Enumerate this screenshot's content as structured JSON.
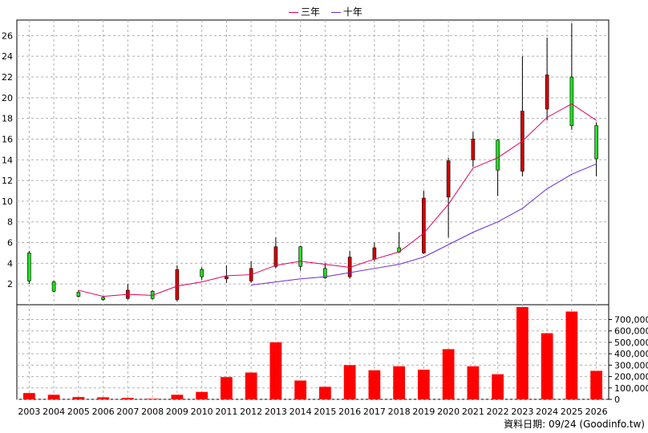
{
  "legend": {
    "ma3_label": "三年",
    "ma10_label": "十年",
    "ma3_color": "#e0005a",
    "ma10_color": "#6b2ad6"
  },
  "footer": {
    "text": "資料日期: 09/24  (Goodinfo.tw)"
  },
  "colors": {
    "up": "#d40000",
    "down": "#1ee01e",
    "volume": "#ff0000",
    "grid": "#b0b0b0"
  },
  "chart_data": [
    {
      "type": "candlestick",
      "title": "",
      "x": [
        "2003",
        "2004",
        "2005",
        "2006",
        "2007",
        "2008",
        "2009",
        "2010",
        "2011",
        "2012",
        "2013",
        "2014",
        "2015",
        "2016",
        "2017",
        "2018",
        "2019",
        "2020",
        "2021",
        "2022",
        "2023",
        "2024",
        "2025",
        "2026"
      ],
      "ylim": [
        0,
        27.5
      ],
      "yticks": [
        2,
        4,
        6,
        8,
        10,
        12,
        14,
        16,
        18,
        20,
        22,
        24,
        26
      ],
      "ohlc": [
        {
          "x": "2003",
          "o": 5.0,
          "h": 5.2,
          "l": 2.0,
          "c": 2.3
        },
        {
          "x": "2004",
          "o": 2.2,
          "h": 2.3,
          "l": 1.2,
          "c": 1.3
        },
        {
          "x": "2005",
          "o": 1.2,
          "h": 1.4,
          "l": 0.7,
          "c": 0.8
        },
        {
          "x": "2006",
          "o": 0.7,
          "h": 0.8,
          "l": 0.4,
          "c": 0.5
        },
        {
          "x": "2007",
          "o": 0.6,
          "h": 2.0,
          "l": 0.5,
          "c": 1.4
        },
        {
          "x": "2008",
          "o": 1.3,
          "h": 1.4,
          "l": 0.5,
          "c": 0.6
        },
        {
          "x": "2009",
          "o": 0.5,
          "h": 3.8,
          "l": 0.3,
          "c": 3.4
        },
        {
          "x": "2010",
          "o": 3.4,
          "h": 3.6,
          "l": 2.4,
          "c": 2.7
        },
        {
          "x": "2011",
          "o": 2.5,
          "h": 3.8,
          "l": 2.1,
          "c": 2.7
        },
        {
          "x": "2012",
          "o": 2.3,
          "h": 4.2,
          "l": 2.1,
          "c": 3.5
        },
        {
          "x": "2013",
          "o": 3.7,
          "h": 6.5,
          "l": 3.5,
          "c": 5.6
        },
        {
          "x": "2014",
          "o": 5.6,
          "h": 5.7,
          "l": 3.3,
          "c": 3.7
        },
        {
          "x": "2015",
          "o": 3.5,
          "h": 4.0,
          "l": 2.5,
          "c": 2.6
        },
        {
          "x": "2016",
          "o": 2.7,
          "h": 5.2,
          "l": 2.5,
          "c": 4.6
        },
        {
          "x": "2017",
          "o": 4.4,
          "h": 6.0,
          "l": 4.2,
          "c": 5.5
        },
        {
          "x": "2018",
          "o": 5.5,
          "h": 7.0,
          "l": 5.0,
          "c": 5.1
        },
        {
          "x": "2019",
          "o": 5.0,
          "h": 11.0,
          "l": 4.9,
          "c": 10.3
        },
        {
          "x": "2020",
          "o": 10.4,
          "h": 14.2,
          "l": 6.5,
          "c": 13.9
        },
        {
          "x": "2021",
          "o": 14.0,
          "h": 16.7,
          "l": 13.3,
          "c": 16.0
        },
        {
          "x": "2022",
          "o": 15.9,
          "h": 16.0,
          "l": 10.5,
          "c": 13.0
        },
        {
          "x": "2023",
          "o": 12.9,
          "h": 24.0,
          "l": 12.4,
          "c": 18.7
        },
        {
          "x": "2024",
          "o": 18.9,
          "h": 25.8,
          "l": 17.8,
          "c": 22.2
        },
        {
          "x": "2025",
          "o": 22.0,
          "h": 27.2,
          "l": 16.9,
          "c": 17.3
        },
        {
          "x": "2026",
          "o": 17.3,
          "h": 17.6,
          "l": 12.4,
          "c": 14.1
        }
      ],
      "series": [
        {
          "name": "三年",
          "x": [
            "2005",
            "2006",
            "2007",
            "2008",
            "2009",
            "2010",
            "2011",
            "2012",
            "2013",
            "2014",
            "2015",
            "2016",
            "2017",
            "2018",
            "2019",
            "2020",
            "2021",
            "2022",
            "2023",
            "2024",
            "2025",
            "2026"
          ],
          "values": [
            1.4,
            0.8,
            1.0,
            0.9,
            1.8,
            2.2,
            2.8,
            2.9,
            3.8,
            4.2,
            3.9,
            3.6,
            4.4,
            5.1,
            6.9,
            9.7,
            13.2,
            14.2,
            15.8,
            18.1,
            19.4,
            17.8
          ]
        },
        {
          "name": "十年",
          "x": [
            "2012",
            "2013",
            "2014",
            "2015",
            "2016",
            "2017",
            "2018",
            "2019",
            "2020",
            "2021",
            "2022",
            "2023",
            "2024",
            "2025",
            "2026"
          ],
          "values": [
            1.9,
            2.2,
            2.5,
            2.7,
            3.1,
            3.5,
            3.9,
            4.6,
            5.8,
            7.0,
            8.0,
            9.3,
            11.2,
            12.6,
            13.6
          ]
        }
      ]
    },
    {
      "type": "bar",
      "title": "",
      "categories": [
        "2003",
        "2004",
        "2005",
        "2006",
        "2007",
        "2008",
        "2009",
        "2010",
        "2011",
        "2012",
        "2013",
        "2014",
        "2015",
        "2016",
        "2017",
        "2018",
        "2019",
        "2020",
        "2021",
        "2022",
        "2023",
        "2024",
        "2025",
        "2026"
      ],
      "values": [
        55000,
        40000,
        20000,
        18000,
        12000,
        5000,
        40000,
        65000,
        195000,
        235000,
        500000,
        165000,
        110000,
        300000,
        255000,
        290000,
        260000,
        440000,
        290000,
        220000,
        810000,
        580000,
        770000,
        250000
      ],
      "ylim": [
        0,
        830000
      ],
      "yticks": [
        "0",
        "100,000",
        "200,000",
        "300,000",
        "400,000",
        "500,000",
        "600,000",
        "700,000"
      ]
    }
  ]
}
